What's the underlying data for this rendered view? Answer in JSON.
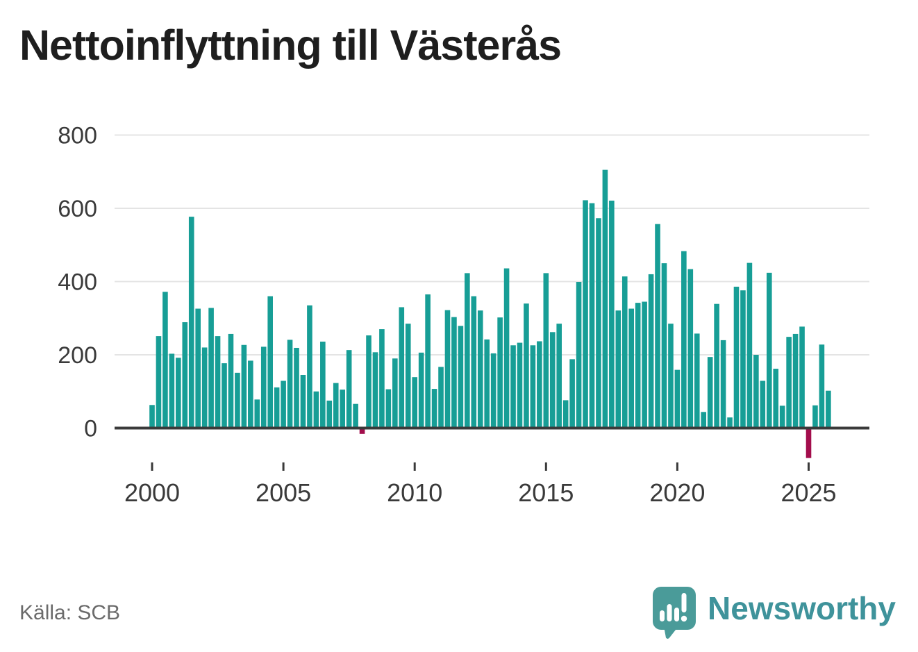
{
  "header": {
    "title": "Nettoinflyttning till Västerås"
  },
  "footer": {
    "source_label": "Källa: SCB",
    "brand": "Newsworthy"
  },
  "colors": {
    "bar_positive": "#179e96",
    "bar_negative": "#a30d4c",
    "axis_text": "#3a3a3a",
    "axis_line": "#3a3a3a",
    "gridline": "#e4e4e4",
    "source_text": "#6b6b6b",
    "brand_teal": "#3f939b",
    "logo_fill": "#4a9b99"
  },
  "chart_data": {
    "type": "bar",
    "title": "Nettoinflyttning till Västerås",
    "frequency": "quarterly",
    "start": "2000-Q1",
    "end": "2025-Q4",
    "xlabel": "",
    "ylabel": "",
    "y_ticks": [
      0,
      200,
      400,
      600,
      800
    ],
    "x_ticks": [
      2000,
      2005,
      2010,
      2015,
      2020,
      2025
    ],
    "ylim": [
      -110,
      840
    ],
    "grid": "horizontal",
    "legend": "none",
    "values_by_year": {
      "2000": [
        63,
        251,
        372,
        203
      ],
      "2001": [
        192,
        289,
        577,
        326
      ],
      "2002": [
        220,
        328,
        251,
        177
      ],
      "2003": [
        257,
        151,
        227,
        184
      ],
      "2004": [
        78,
        222,
        360,
        111
      ],
      "2005": [
        129,
        241,
        219,
        145
      ],
      "2006": [
        335,
        100,
        236,
        75
      ],
      "2007": [
        123,
        105,
        213,
        66
      ],
      "2008": [
        -12,
        253,
        207,
        270
      ],
      "2009": [
        106,
        190,
        330,
        285
      ],
      "2010": [
        139,
        206,
        365,
        107
      ],
      "2011": [
        167,
        322,
        303,
        279
      ],
      "2012": [
        423,
        360,
        321,
        242
      ],
      "2013": [
        204,
        302,
        436,
        226
      ],
      "2014": [
        233,
        340,
        226,
        237
      ],
      "2015": [
        423,
        262,
        285,
        76
      ],
      "2016": [
        188,
        399,
        622,
        614
      ],
      "2017": [
        573,
        705,
        621,
        321
      ],
      "2018": [
        414,
        326,
        342,
        345
      ],
      "2019": [
        420,
        557,
        450,
        285
      ],
      "2020": [
        159,
        483,
        434,
        258
      ],
      "2021": [
        44,
        194,
        339,
        240
      ],
      "2022": [
        29,
        386,
        376,
        451
      ],
      "2023": [
        200,
        129,
        424,
        162
      ],
      "2024": [
        61,
        249,
        257,
        277
      ],
      "2025": [
        -78,
        62,
        228,
        102
      ]
    }
  }
}
